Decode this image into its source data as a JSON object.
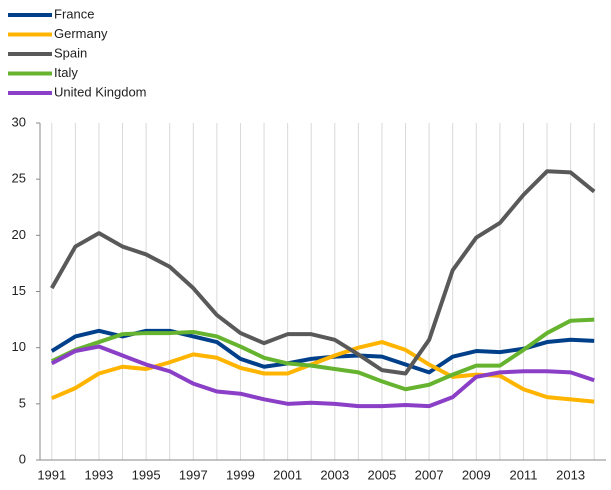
{
  "chart_data": {
    "type": "line",
    "categories": [
      "1991",
      null,
      "1993",
      null,
      "1995",
      null,
      "1997",
      null,
      "1999",
      null,
      "2001",
      null,
      "2003",
      null,
      "2005",
      null,
      "2007",
      null,
      "2009",
      null,
      "2011",
      null,
      "2013",
      null
    ],
    "series": [
      {
        "name": "France",
        "color": "#003f8a",
        "values": [
          9.7,
          11.0,
          11.5,
          11.0,
          11.5,
          11.5,
          11.0,
          10.5,
          9.0,
          8.3,
          8.6,
          9.0,
          9.2,
          9.3,
          9.2,
          8.5,
          7.8,
          9.2,
          9.7,
          9.6,
          9.9,
          10.5,
          10.7,
          10.6
        ]
      },
      {
        "name": "Germany",
        "color": "#ffb400",
        "values": [
          5.5,
          6.4,
          7.7,
          8.3,
          8.1,
          8.7,
          9.4,
          9.1,
          8.2,
          7.7,
          7.7,
          8.5,
          9.3,
          10.0,
          10.5,
          9.8,
          8.5,
          7.4,
          7.6,
          7.5,
          6.3,
          5.6,
          5.4,
          5.2
        ]
      },
      {
        "name": "Spain",
        "color": "#595959",
        "values": [
          15.3,
          19.0,
          20.2,
          19.0,
          18.3,
          17.2,
          15.3,
          12.9,
          11.3,
          10.4,
          11.2,
          11.2,
          10.7,
          9.4,
          8.0,
          7.7,
          10.7,
          16.9,
          19.8,
          21.1,
          23.6,
          25.7,
          25.6,
          23.9
        ]
      },
      {
        "name": "Italy",
        "color": "#65b32e",
        "values": [
          8.8,
          9.8,
          10.5,
          11.2,
          11.3,
          11.3,
          11.4,
          11.0,
          10.1,
          9.1,
          8.6,
          8.4,
          8.1,
          7.8,
          7.0,
          6.3,
          6.7,
          7.6,
          8.4,
          8.4,
          9.8,
          11.3,
          12.4,
          12.5
        ]
      },
      {
        "name": "United Kingdom",
        "color": "#8a3fc6",
        "values": [
          8.6,
          9.7,
          10.1,
          9.3,
          8.5,
          7.9,
          6.8,
          6.1,
          5.9,
          5.4,
          5.0,
          5.1,
          5.0,
          4.8,
          4.8,
          4.9,
          4.8,
          5.6,
          7.4,
          7.8,
          7.9,
          7.9,
          7.8,
          7.1
        ]
      }
    ],
    "ylim": [
      0,
      30
    ],
    "yticks": [
      0,
      5,
      10,
      15,
      20,
      25,
      30
    ],
    "grid": true,
    "legend": "top-left"
  }
}
